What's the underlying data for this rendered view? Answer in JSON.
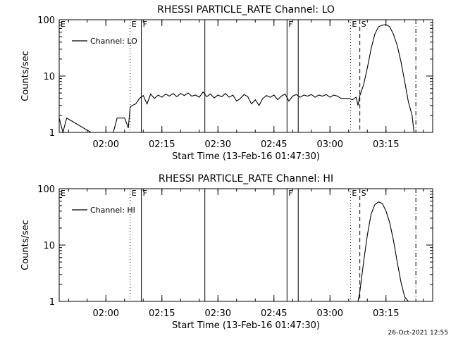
{
  "footer": {
    "timestamp": "26-Oct-2021 12:55"
  },
  "chart_data": [
    {
      "type": "line",
      "title": "RHESSI PARTICLE_RATE Channel: LO",
      "xlabel": "Start Time (13-Feb-16 01:47:30)",
      "ylabel": "Counts/sec",
      "yscale": "log",
      "ylim": [
        1,
        100
      ],
      "xlim": [
        "01:47:30",
        "03:27:30"
      ],
      "grid": false,
      "legend_placement": "top-left",
      "x_ticks": [
        "02:00",
        "02:15",
        "02:30",
        "02:45",
        "03:00",
        "03:15"
      ],
      "y_ticks": [
        "1",
        "10",
        "100"
      ],
      "legend": [
        "Channel: LO"
      ],
      "markers": [
        {
          "time": "02:06:30",
          "style": "dotted",
          "label": "E"
        },
        {
          "time": "02:09:30",
          "style": "solid",
          "label": "F"
        },
        {
          "time": "02:26:30",
          "style": "solid",
          "label": ""
        },
        {
          "time": "02:48:30",
          "style": "solid",
          "label": "F"
        },
        {
          "time": "02:51:30",
          "style": "solid",
          "label": ""
        },
        {
          "time": "03:05:30",
          "style": "dotted",
          "label": "E"
        },
        {
          "time": "03:08:00",
          "style": "dashed",
          "label": "S"
        },
        {
          "time": "03:23:00",
          "style": "dashdot",
          "label": ""
        }
      ],
      "series": [
        {
          "name": "Channel: LO",
          "x": [
            "01:47:30",
            "01:48:30",
            "01:49:30",
            "01:56:00",
            "01:57:00",
            "01:58:00",
            "01:59:00",
            "02:00:00",
            "02:01:00",
            "02:02:00",
            "02:03:00",
            "02:04:00",
            "02:05:00",
            "02:06:00",
            "02:06:30",
            "02:07:00",
            "02:08:00",
            "02:09:00",
            "02:10:00",
            "02:11:00",
            "02:12:00",
            "02:13:00",
            "02:14:00",
            "02:15:00",
            "02:16:00",
            "02:17:00",
            "02:18:00",
            "02:19:00",
            "02:20:00",
            "02:21:00",
            "02:22:00",
            "02:23:00",
            "02:24:00",
            "02:25:00",
            "02:26:00",
            "02:27:00",
            "02:28:00",
            "02:29:00",
            "02:30:00",
            "02:31:00",
            "02:32:00",
            "02:33:00",
            "02:34:00",
            "02:35:00",
            "02:36:00",
            "02:37:00",
            "02:38:00",
            "02:39:00",
            "02:40:00",
            "02:41:00",
            "02:42:00",
            "02:43:00",
            "02:44:00",
            "02:45:00",
            "02:46:00",
            "02:47:00",
            "02:48:00",
            "02:49:00",
            "02:50:00",
            "02:51:00",
            "02:52:00",
            "02:53:00",
            "02:54:00",
            "02:55:00",
            "02:56:00",
            "02:57:00",
            "02:58:00",
            "02:59:00",
            "03:00:00",
            "03:01:00",
            "03:02:00",
            "03:03:00",
            "03:04:00",
            "03:05:00",
            "03:06:00",
            "03:07:00",
            "03:07:30",
            "03:08:00",
            "03:09:00",
            "03:10:00",
            "03:11:00",
            "03:12:00",
            "03:13:00",
            "03:14:00",
            "03:15:00",
            "03:16:00",
            "03:17:00",
            "03:18:00",
            "03:19:00",
            "03:20:00",
            "03:21:00",
            "03:22:00",
            "03:22:30"
          ],
          "y": [
            1.8,
            1,
            1.8,
            1,
            1,
            1,
            1,
            1,
            1,
            1,
            1.8,
            1.8,
            1.8,
            1.2,
            2.8,
            3.0,
            3.2,
            4.0,
            4.5,
            3.2,
            4.8,
            4.0,
            4.6,
            4.2,
            4.8,
            4.4,
            4.9,
            4.3,
            4.9,
            4.5,
            5.0,
            4.4,
            4.6,
            4.2,
            5.2,
            4.3,
            4.8,
            4.1,
            4.6,
            4.3,
            4.9,
            4.2,
            4.6,
            3.6,
            4.0,
            4.7,
            4.3,
            3.2,
            3.8,
            3.0,
            4.0,
            4.5,
            4.2,
            4.6,
            3.8,
            4.4,
            4.8,
            3.6,
            4.4,
            4.7,
            4.2,
            4.6,
            4.4,
            4.7,
            4.2,
            4.6,
            4.4,
            4.7,
            4.2,
            4.6,
            4.4,
            4.0,
            4.0,
            4.0,
            3.8,
            4.2,
            3.0,
            4.5,
            7,
            14,
            30,
            55,
            75,
            80,
            82,
            75,
            55,
            35,
            18,
            8,
            3.5,
            2,
            1
          ]
        }
      ]
    },
    {
      "type": "line",
      "title": "RHESSI PARTICLE_RATE Channel: HI",
      "xlabel": "Start Time (13-Feb-16 01:47:30)",
      "ylabel": "Counts/sec",
      "yscale": "log",
      "ylim": [
        1,
        100
      ],
      "xlim": [
        "01:47:30",
        "03:27:30"
      ],
      "grid": false,
      "legend_placement": "top-left",
      "x_ticks": [
        "02:00",
        "02:15",
        "02:30",
        "02:45",
        "03:00",
        "03:15"
      ],
      "y_ticks": [
        "1",
        "10",
        "100"
      ],
      "legend": [
        "Channel: HI"
      ],
      "markers": [
        {
          "time": "02:06:30",
          "style": "dotted",
          "label": "E"
        },
        {
          "time": "02:09:30",
          "style": "solid",
          "label": "F"
        },
        {
          "time": "02:26:30",
          "style": "solid",
          "label": ""
        },
        {
          "time": "02:48:30",
          "style": "solid",
          "label": "F"
        },
        {
          "time": "02:51:30",
          "style": "solid",
          "label": ""
        },
        {
          "time": "03:05:30",
          "style": "dotted",
          "label": "E"
        },
        {
          "time": "03:08:00",
          "style": "dashed",
          "label": "S"
        },
        {
          "time": "03:23:00",
          "style": "dashdot",
          "label": ""
        }
      ],
      "series": [
        {
          "name": "Channel: HI",
          "x": [
            "03:07:30",
            "03:08:00",
            "03:09:00",
            "03:10:00",
            "03:11:00",
            "03:12:00",
            "03:13:00",
            "03:14:00",
            "03:15:00",
            "03:16:00",
            "03:17:00",
            "03:18:00",
            "03:19:00",
            "03:20:00",
            "03:21:00"
          ],
          "y": [
            1,
            1.5,
            5,
            15,
            35,
            52,
            58,
            55,
            40,
            25,
            12,
            5,
            2.2,
            1.2,
            1
          ]
        }
      ]
    }
  ]
}
